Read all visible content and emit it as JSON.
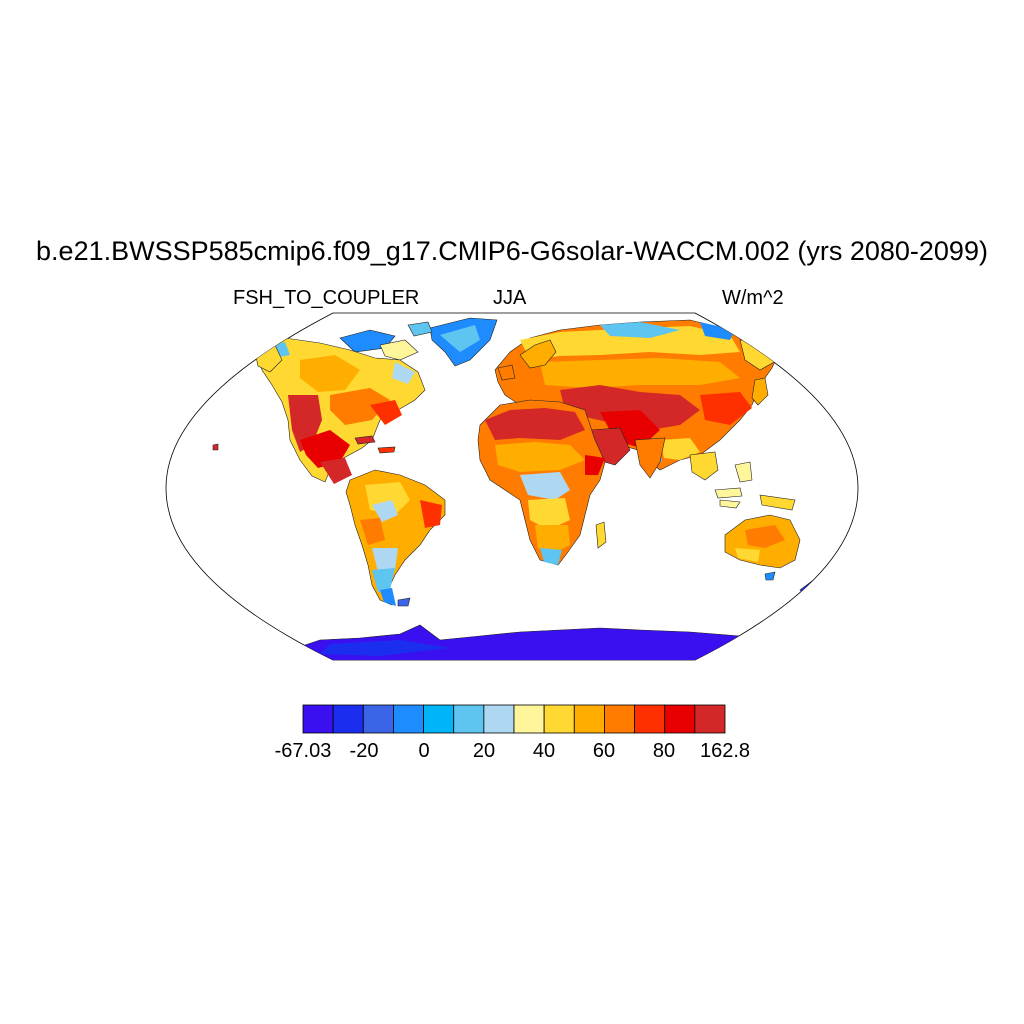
{
  "title": "b.e21.BWSSP585cmip6.f09_g17.CMIP6-G6solar-WACCM.002 (yrs 2080-2099)",
  "variable": "FSH_TO_COUPLER",
  "season": "JJA",
  "units": "W/m^2",
  "colorbar": {
    "labels": [
      "-67.03",
      "-20",
      "0",
      "20",
      "40",
      "60",
      "80",
      "162.8"
    ],
    "colors": [
      "#3a10f0",
      "#1b2ef0",
      "#3c64e6",
      "#1e8cff",
      "#00b4f8",
      "#5ec4f0",
      "#aed8f2",
      "#fff59a",
      "#ffd832",
      "#ffae00",
      "#ff7c00",
      "#ff3000",
      "#e80000",
      "#d42828"
    ]
  },
  "map": {
    "projection": "Robinson",
    "ocean_color": "#ffffff",
    "land_color_hot": "#d42828",
    "land_color_cold": "#3a10f0"
  }
}
